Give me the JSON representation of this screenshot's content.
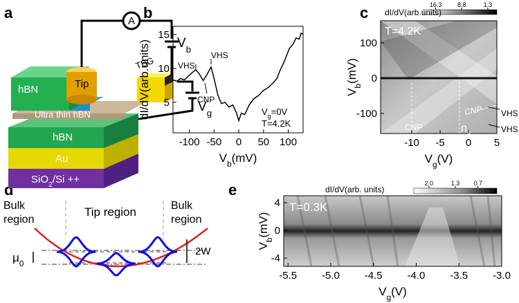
{
  "panel_labels": [
    "a",
    "b",
    "c",
    "d",
    "e"
  ],
  "panel_a": {
    "ammeter": "A",
    "vb": {
      "main": "V",
      "sub": "b"
    },
    "vg": {
      "main": "V",
      "sub": "g"
    },
    "hbn_top": "hBN",
    "tip": "Tip",
    "tbg": "TBG",
    "ultra_thin": "Ultra thin hBN",
    "hbn_bottom": "hBN",
    "au": "Au",
    "substrate": {
      "main": "SiO",
      "sub": "2",
      "rest": "/Si ++"
    }
  },
  "chart_data": [
    {
      "type": "line",
      "ylabel": "dI/dV(arb.units)",
      "xlabel": {
        "main": "V",
        "sub": "b",
        "rest": "(mV)"
      },
      "x": [
        -133,
        -125,
        -118,
        -110,
        -100,
        -92,
        -87,
        -80,
        -72,
        -65,
        -56,
        -50,
        -42,
        -35,
        -28,
        -20,
        -12,
        -5,
        0,
        5,
        12,
        21,
        30,
        40,
        49,
        60,
        70,
        77,
        84,
        92,
        102,
        110,
        116,
        122,
        126,
        130
      ],
      "values": [
        8.3,
        8.1,
        8.5,
        8.3,
        9.0,
        9.5,
        9.8,
        9.2,
        8.2,
        9.0,
        10.2,
        8.5,
        6.0,
        4.8,
        5.0,
        4.3,
        4.6,
        3.5,
        2.3,
        3.4,
        3.2,
        4.6,
        5.5,
        6.0,
        6.7,
        7.2,
        7.9,
        8.5,
        9.8,
        11.0,
        12.9,
        13.6,
        14.5,
        14.3,
        15.2,
        15.0
      ],
      "color": "#000000",
      "xlim": [
        -133,
        130
      ],
      "ylim": [
        0.5,
        16.2
      ],
      "xticks": [
        -100,
        -50,
        0,
        50,
        100
      ],
      "yticks": [
        5,
        10,
        15
      ],
      "annotations": [
        "VHS",
        "VHS",
        "CNP"
      ],
      "conditions": [
        {
          "main": "V",
          "sub": "g",
          "rest": "=0V"
        },
        "T=4.2K"
      ]
    },
    {
      "type": "heatmap",
      "colorbar_title": "dI/dV(arb.units)",
      "clim": [
        19.8,
        -1.3
      ],
      "colorbar_ticks": [
        16.3,
        8.8,
        1.3
      ],
      "ylabel": {
        "main": "V",
        "sub": "b",
        "rest": "(mV)"
      },
      "xlabel": {
        "main": "V",
        "sub": "g",
        "rest": "(V)"
      },
      "xlim": [
        -15.5,
        5
      ],
      "ylim": [
        -157,
        163
      ],
      "xticks": [
        -10,
        -5,
        0,
        5
      ],
      "yticks": [
        100,
        0,
        -100
      ],
      "annotations": [
        "T=4.2K",
        "CNP",
        {
          "main": "n",
          "sub": "s"
        },
        "CNP",
        "VHS",
        "VHS"
      ]
    },
    {
      "type": "heatmap",
      "colorbar_title": "dI/dV(arb. units)",
      "clim": [
        2.4,
        0.2
      ],
      "colorbar_ticks": [
        {
          "value": 2,
          "label": "2.0"
        },
        1.3,
        0.7
      ],
      "ylabel": {
        "main": "V",
        "sub": "b",
        "rest": "(mV)"
      },
      "xlabel": {
        "main": "V",
        "sub": "g",
        "rest": "(V)"
      },
      "xlim": [
        -5.55,
        -3.0
      ],
      "ylim": [
        -5.2,
        5
      ],
      "xticks": [
        -5.5,
        {
          "value": -5,
          "label": "-5.0"
        },
        -4.5,
        {
          "value": -4,
          "label": "-4.0"
        },
        -3.5,
        {
          "value": -3,
          "label": "-3.0"
        }
      ],
      "yticks": [
        4,
        0,
        -4
      ],
      "annotations": [
        "T=0.3K"
      ]
    }
  ],
  "panel_d": {
    "bulk_left": [
      "Bulk",
      "region"
    ],
    "tip_region": "Tip region",
    "bulk_right": [
      "Bulk",
      "region"
    ],
    "mu": {
      "main": "μ",
      "sub": "0"
    },
    "width": "2W"
  }
}
